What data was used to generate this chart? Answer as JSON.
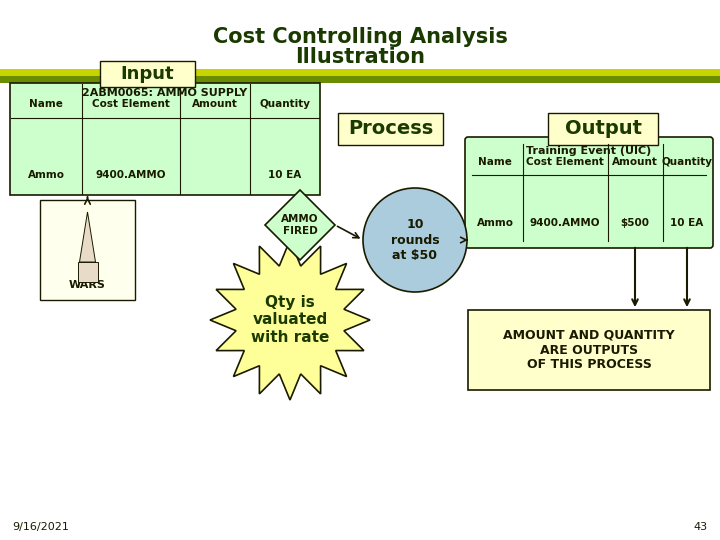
{
  "title_line1": "Cost Controlling Analysis",
  "title_line2": "Illustration",
  "title_color": "#1a3a00",
  "bg_color": "#ffffff",
  "stripe_color_top": "#c8d400",
  "stripe_color_bottom": "#6a8c00",
  "input_label": "Input",
  "input_bg": "#ffffcc",
  "process_label": "Process",
  "process_bg": "#ffffcc",
  "output_label": "Output",
  "output_bg": "#ffffcc",
  "input_table_title": "2ABM0065: AMMO SUPPLY",
  "input_table_bg": "#ccffcc",
  "input_headers": [
    "Name",
    "Cost Element",
    "Amount",
    "Quantity"
  ],
  "input_row": [
    "Ammo",
    "9400.AMMO",
    "",
    "10 EA"
  ],
  "output_table_title": "Training Event (UIC)",
  "output_table_bg": "#ccffcc",
  "output_headers": [
    "Name",
    "Cost Element",
    "Amount",
    "Quantity"
  ],
  "output_row": [
    "Ammo",
    "9400.AMMO",
    "$500",
    "10 EA"
  ],
  "diamond_label": "AMMO\nFIRED",
  "diamond_bg": "#ccffcc",
  "circle_label": "10\nrounds\nat $50",
  "circle_bg": "#aaccdd",
  "center_label": "Qty is\nvaluated\nwith rate",
  "wars_label": "WARS",
  "bottom_text": "AMOUNT AND QUANTITY\nARE OUTPUTS\nOF THIS PROCESS",
  "date_text": "9/16/2021",
  "page_num": "43",
  "text_dark": "#1a1a00",
  "text_black": "#000000",
  "bottom_box_bg": "#ffffcc"
}
